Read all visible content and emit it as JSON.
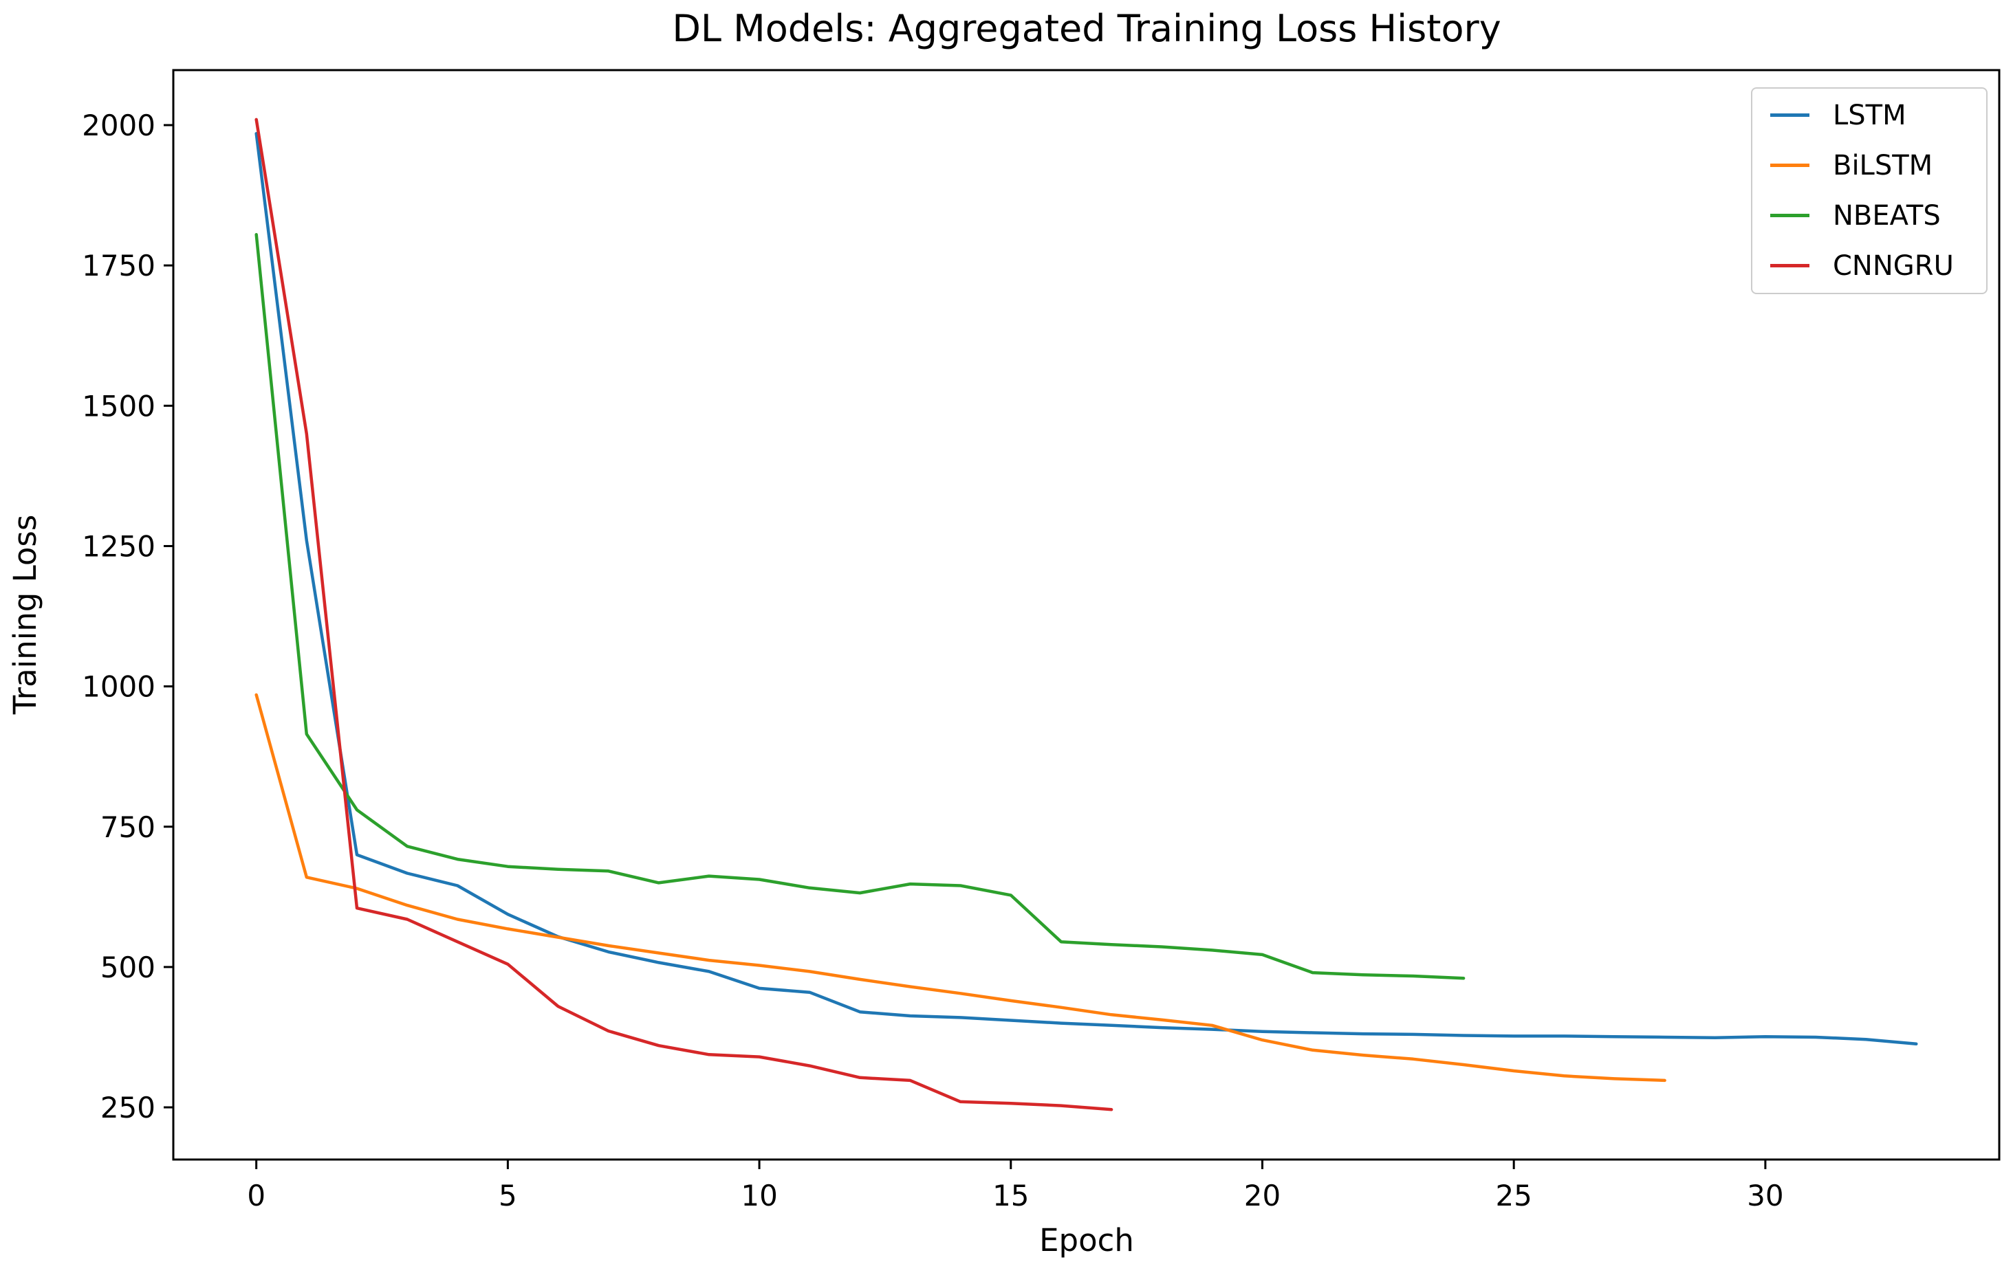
{
  "chart_data": {
    "type": "line",
    "title": "DL Models: Aggregated Training Loss History",
    "xlabel": "Epoch",
    "ylabel": "Training Loss",
    "xlim": [
      -1.65,
      34.65
    ],
    "ylim": [
      157,
      2098
    ],
    "xticks": [
      0,
      5,
      10,
      15,
      20,
      25,
      30
    ],
    "yticks": [
      250,
      500,
      750,
      1000,
      1250,
      1500,
      1750,
      2000
    ],
    "grid": false,
    "legend_position": "upper right",
    "axis_color": "#000000",
    "series": [
      {
        "name": "LSTM",
        "color": "#1f77b4",
        "x": [
          0,
          1,
          2,
          3,
          4,
          5,
          6,
          7,
          8,
          9,
          10,
          11,
          12,
          13,
          14,
          15,
          16,
          17,
          18,
          19,
          20,
          21,
          22,
          23,
          24,
          25,
          26,
          27,
          28,
          29,
          30,
          31,
          32,
          33
        ],
        "values": [
          1985,
          1260,
          700,
          667,
          645,
          594,
          554,
          527,
          508,
          492,
          462,
          455,
          420,
          413,
          410,
          405,
          400,
          396,
          392,
          389,
          385,
          383,
          381,
          380,
          378,
          377,
          377,
          376,
          375,
          374,
          376,
          375,
          371,
          363
        ]
      },
      {
        "name": "BiLSTM",
        "color": "#ff7f0e",
        "x": [
          0,
          1,
          2,
          3,
          4,
          5,
          6,
          7,
          8,
          9,
          10,
          11,
          12,
          13,
          14,
          15,
          16,
          17,
          18,
          19,
          20,
          21,
          22,
          23,
          24,
          25,
          26,
          27,
          28
        ],
        "values": [
          985,
          660,
          640,
          610,
          585,
          568,
          553,
          538,
          525,
          512,
          503,
          492,
          478,
          465,
          453,
          440,
          428,
          415,
          406,
          396,
          370,
          352,
          343,
          336,
          326,
          315,
          306,
          301,
          298
        ]
      },
      {
        "name": "NBEATS",
        "color": "#2ca02c",
        "x": [
          0,
          1,
          2,
          3,
          4,
          5,
          6,
          7,
          8,
          9,
          10,
          11,
          12,
          13,
          14,
          15,
          16,
          17,
          18,
          19,
          20,
          21,
          22,
          23,
          24
        ],
        "values": [
          1805,
          915,
          780,
          715,
          692,
          679,
          674,
          671,
          650,
          662,
          656,
          641,
          632,
          648,
          645,
          628,
          545,
          540,
          536,
          530,
          522,
          490,
          486,
          484,
          480
        ]
      },
      {
        "name": "CNNGRU",
        "color": "#d62728",
        "x": [
          0,
          1,
          2,
          3,
          4,
          5,
          6,
          7,
          8,
          9,
          10,
          11,
          12,
          13,
          14,
          15,
          16,
          17
        ],
        "values": [
          2010,
          1450,
          605,
          585,
          545,
          505,
          430,
          386,
          360,
          344,
          340,
          324,
          303,
          298,
          260,
          257,
          253,
          246
        ]
      }
    ]
  }
}
